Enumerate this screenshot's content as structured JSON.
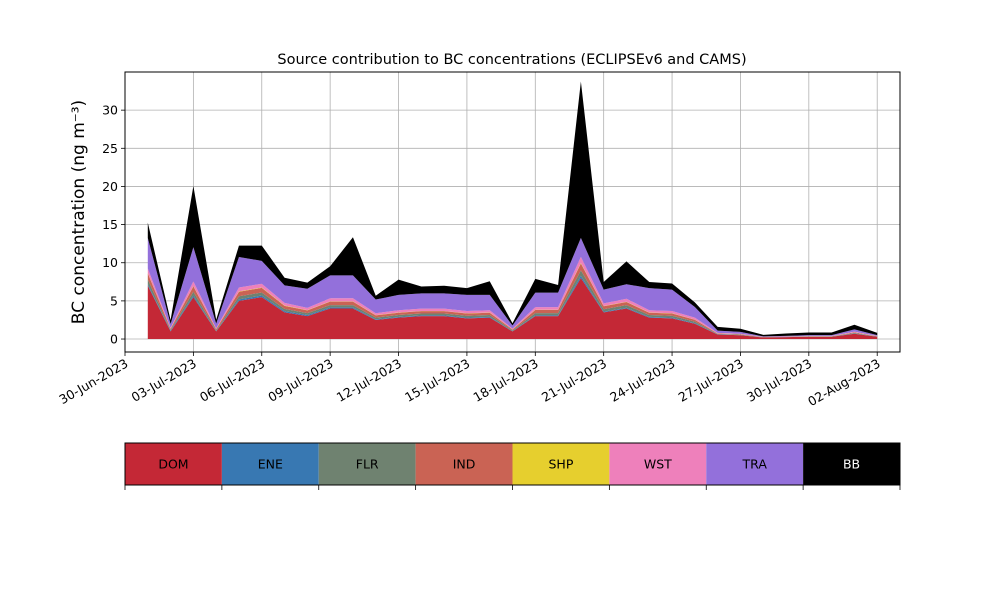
{
  "chart_data": {
    "type": "area",
    "title": "Source contribution to BC concentrations (ECLIPSEv6 and CAMS)",
    "xlabel": "",
    "ylabel": "BC concentration (ng m⁻³)",
    "ylim": [
      -1.7,
      35
    ],
    "xlim": [
      "2023-06-30",
      "2023-08-03"
    ],
    "grid": true,
    "y_ticks": [
      0,
      5,
      10,
      15,
      20,
      25,
      30
    ],
    "x_ticks": [
      "30-Jun-2023",
      "03-Jul-2023",
      "06-Jul-2023",
      "09-Jul-2023",
      "12-Jul-2023",
      "15-Jul-2023",
      "18-Jul-2023",
      "21-Jul-2023",
      "24-Jul-2023",
      "27-Jul-2023",
      "30-Jul-2023",
      "02-Aug-2023"
    ],
    "legend_placement": "bottom colorbar",
    "stacked": true,
    "x": [
      "2023-07-01",
      "2023-07-02",
      "2023-07-03",
      "2023-07-04",
      "2023-07-05",
      "2023-07-06",
      "2023-07-07",
      "2023-07-08",
      "2023-07-09",
      "2023-07-10",
      "2023-07-11",
      "2023-07-12",
      "2023-07-13",
      "2023-07-14",
      "2023-07-15",
      "2023-07-16",
      "2023-07-17",
      "2023-07-18",
      "2023-07-19",
      "2023-07-20",
      "2023-07-21",
      "2023-07-22",
      "2023-07-23",
      "2023-07-24",
      "2023-07-25",
      "2023-07-26",
      "2023-07-27",
      "2023-07-28",
      "2023-07-29",
      "2023-07-30",
      "2023-07-31",
      "2023-08-01",
      "2023-08-02"
    ],
    "series": [
      {
        "name": "DOM",
        "color": "#c42836",
        "values": [
          7.0,
          1.0,
          5.5,
          1.0,
          5.0,
          5.5,
          3.5,
          3.0,
          4.0,
          4.0,
          2.5,
          2.8,
          3.0,
          3.0,
          2.7,
          2.8,
          1.0,
          3.0,
          3.0,
          8.0,
          3.5,
          4.0,
          2.8,
          2.7,
          2.0,
          0.6,
          0.5,
          0.2,
          0.25,
          0.3,
          0.3,
          0.7,
          0.3
        ]
      },
      {
        "name": "ENE",
        "color": "#3878b2",
        "values": [
          0.2,
          0.1,
          0.2,
          0.05,
          0.2,
          0.2,
          0.15,
          0.15,
          0.15,
          0.15,
          0.1,
          0.1,
          0.1,
          0.1,
          0.1,
          0.1,
          0.05,
          0.1,
          0.1,
          0.3,
          0.1,
          0.1,
          0.1,
          0.1,
          0.08,
          0.02,
          0.02,
          0.01,
          0.01,
          0.01,
          0.01,
          0.02,
          0.01
        ]
      },
      {
        "name": "FLR",
        "color": "#6f8270",
        "values": [
          0.6,
          0.1,
          0.5,
          0.1,
          0.4,
          0.4,
          0.3,
          0.25,
          0.3,
          0.3,
          0.2,
          0.25,
          0.25,
          0.25,
          0.25,
          0.25,
          0.1,
          0.3,
          0.3,
          0.7,
          0.3,
          0.35,
          0.25,
          0.25,
          0.2,
          0.05,
          0.05,
          0.02,
          0.02,
          0.03,
          0.03,
          0.08,
          0.03
        ]
      },
      {
        "name": "IND",
        "color": "#ca6354",
        "values": [
          0.8,
          0.15,
          0.7,
          0.15,
          0.6,
          0.6,
          0.4,
          0.35,
          0.45,
          0.45,
          0.3,
          0.3,
          0.3,
          0.3,
          0.3,
          0.3,
          0.1,
          0.4,
          0.4,
          0.9,
          0.4,
          0.4,
          0.3,
          0.3,
          0.25,
          0.06,
          0.06,
          0.03,
          0.03,
          0.03,
          0.03,
          0.08,
          0.03
        ]
      },
      {
        "name": "SHP",
        "color": "#e6cf2e",
        "values": [
          0.05,
          0.02,
          0.05,
          0.02,
          0.05,
          0.05,
          0.04,
          0.04,
          0.04,
          0.04,
          0.03,
          0.03,
          0.03,
          0.03,
          0.03,
          0.03,
          0.02,
          0.03,
          0.03,
          0.06,
          0.03,
          0.03,
          0.03,
          0.03,
          0.02,
          0.01,
          0.01,
          0.01,
          0.01,
          0.01,
          0.01,
          0.01,
          0.01
        ]
      },
      {
        "name": "WST",
        "color": "#ee80bb",
        "values": [
          0.6,
          0.1,
          0.6,
          0.1,
          0.5,
          0.5,
          0.35,
          0.3,
          0.4,
          0.4,
          0.25,
          0.3,
          0.3,
          0.3,
          0.3,
          0.3,
          0.1,
          0.35,
          0.35,
          0.8,
          0.35,
          0.4,
          0.3,
          0.3,
          0.25,
          0.06,
          0.05,
          0.02,
          0.02,
          0.03,
          0.03,
          0.08,
          0.03
        ]
      },
      {
        "name": "TRA",
        "color": "#9370db",
        "values": [
          4.0,
          0.5,
          4.5,
          0.6,
          4.0,
          3.0,
          2.3,
          2.5,
          3.0,
          3.0,
          1.8,
          2.0,
          2.0,
          2.0,
          2.1,
          2.0,
          0.4,
          1.9,
          1.9,
          2.5,
          1.8,
          1.9,
          2.9,
          2.8,
          1.4,
          0.3,
          0.25,
          0.06,
          0.08,
          0.1,
          0.1,
          0.3,
          0.1
        ]
      },
      {
        "name": "BB",
        "color": "#000000",
        "values": [
          2.0,
          0.5,
          8.0,
          0.5,
          1.5,
          2.0,
          1.0,
          0.8,
          1.2,
          5.0,
          0.5,
          2.0,
          0.9,
          1.0,
          0.9,
          1.8,
          0.3,
          1.8,
          1.0,
          20.5,
          1.0,
          3.0,
          0.8,
          0.8,
          0.6,
          0.5,
          0.4,
          0.2,
          0.3,
          0.35,
          0.35,
          0.6,
          0.3
        ]
      }
    ]
  }
}
